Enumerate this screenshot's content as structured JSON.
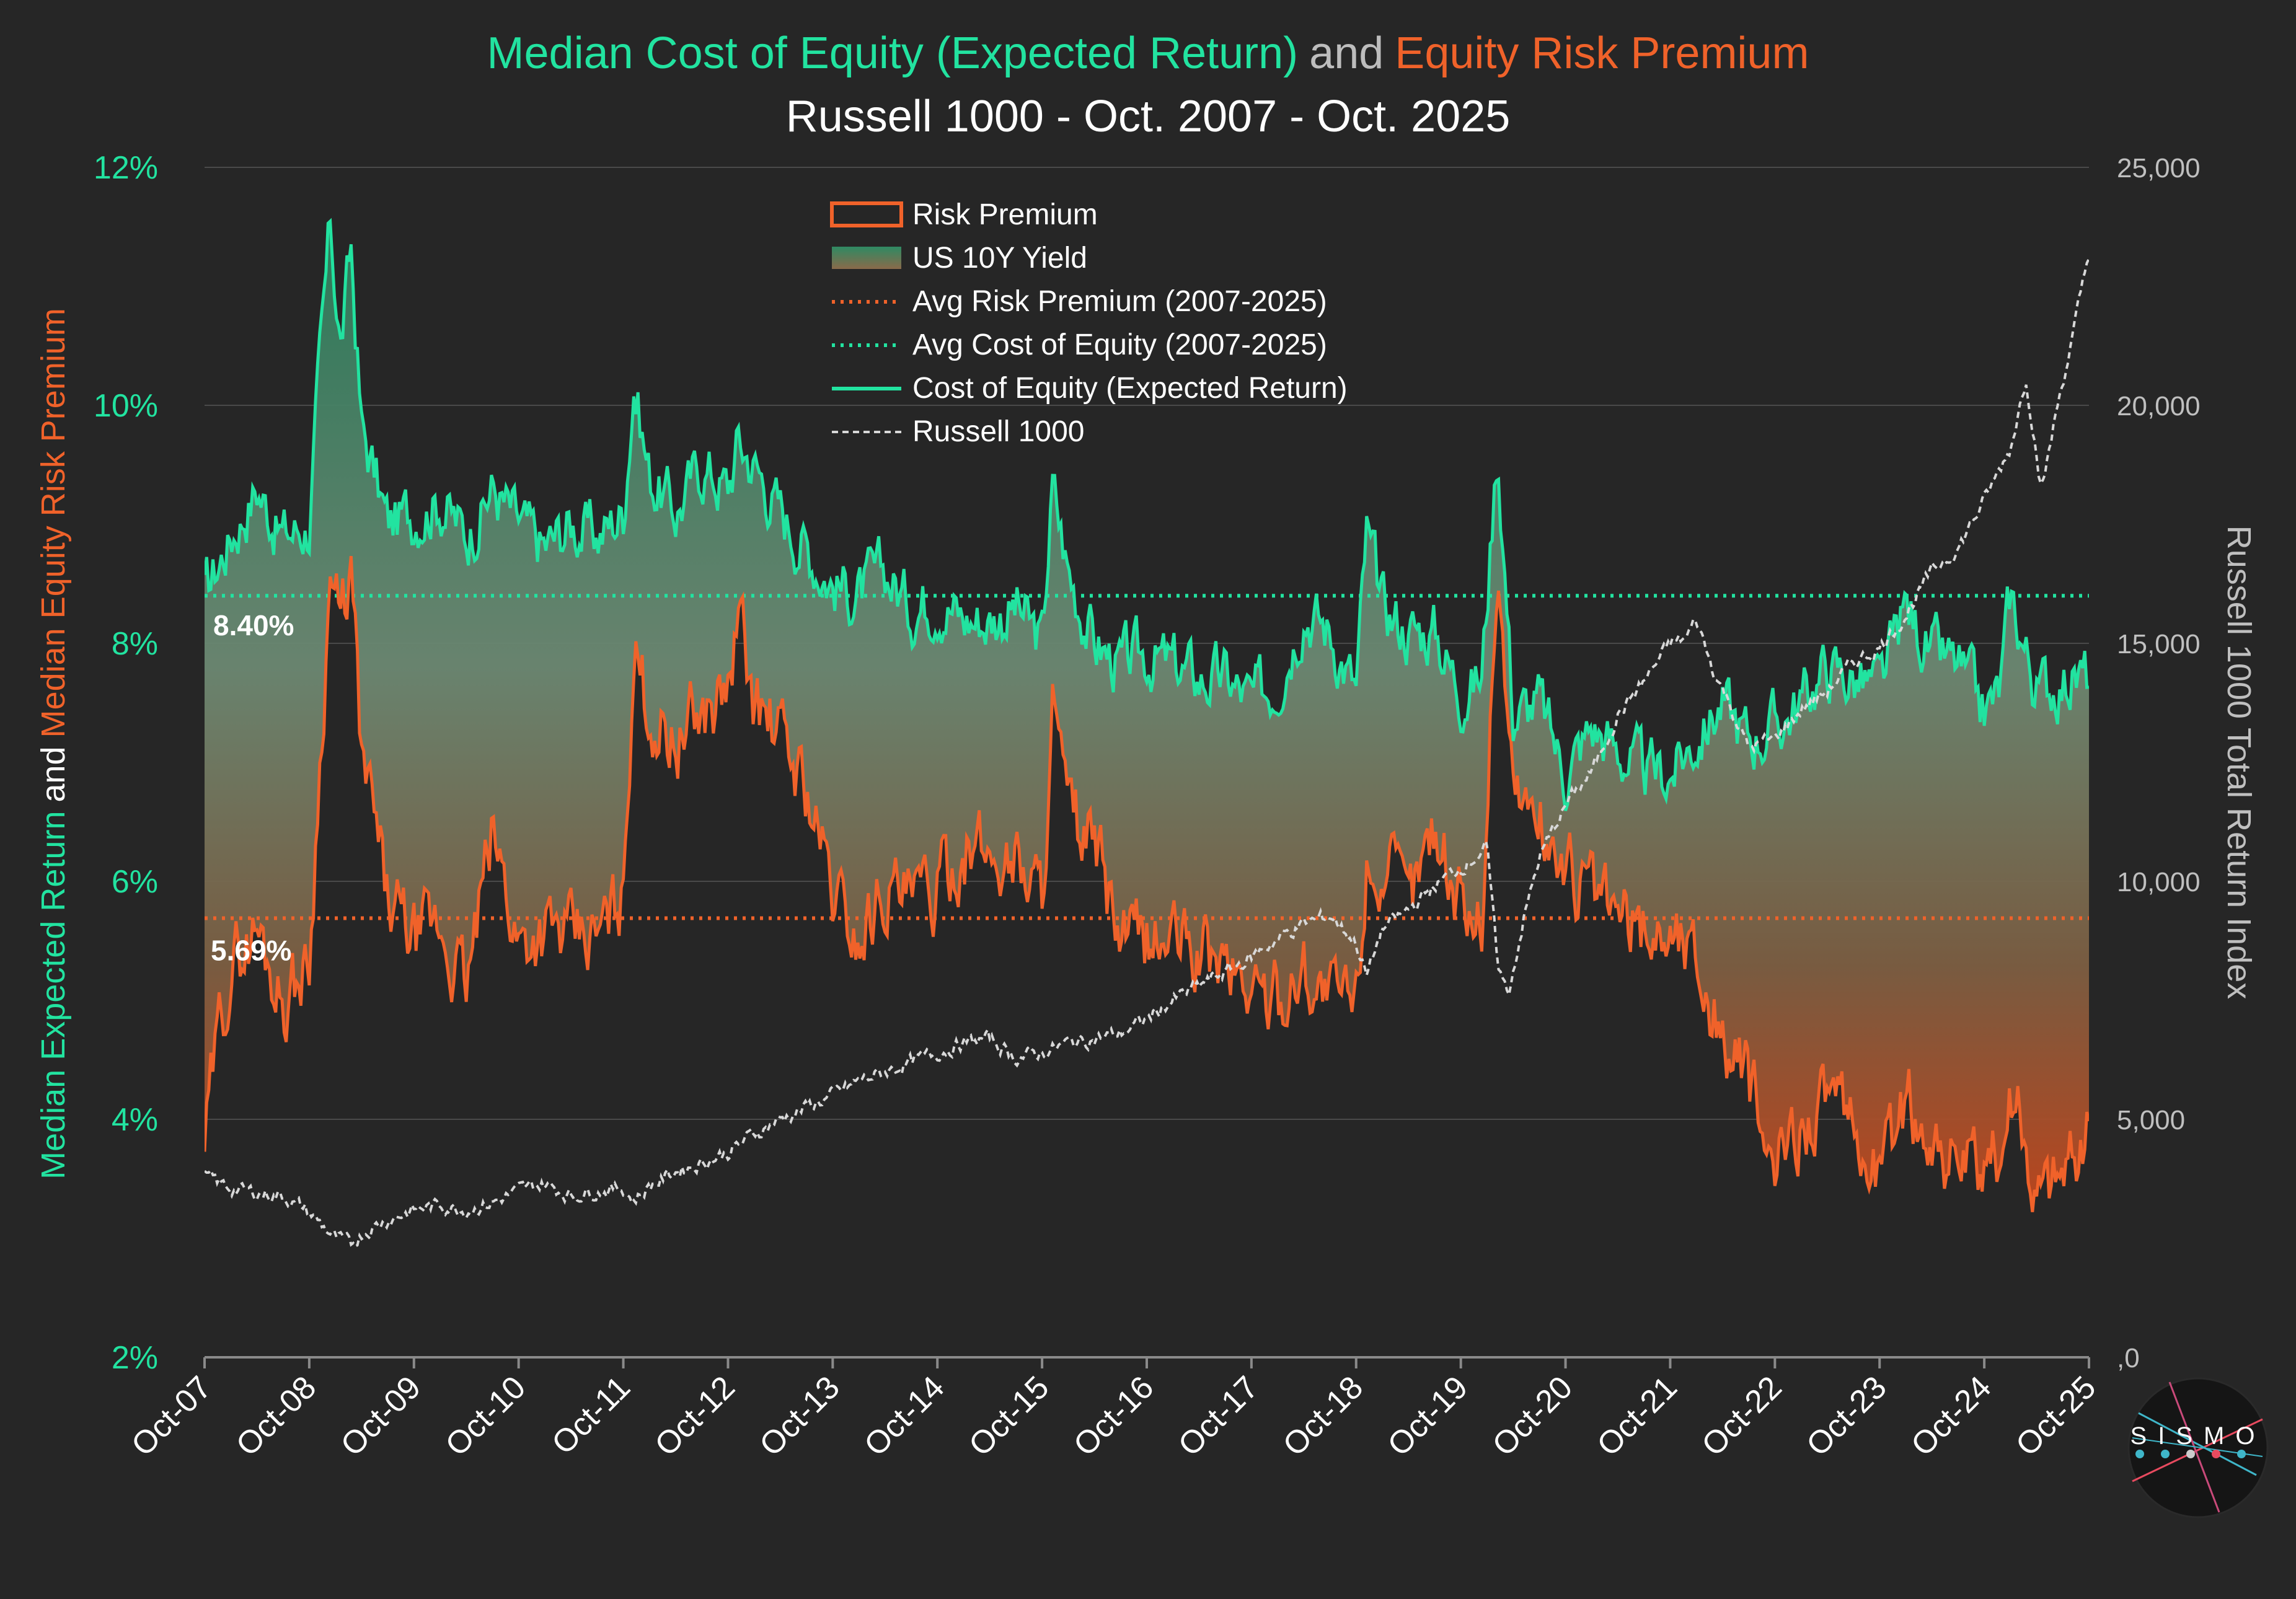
{
  "chart_data": {
    "type": "line",
    "title": {
      "part1": "Median Cost of Equity (Expected Return)",
      "part2": "and",
      "part3": "Equity Risk Premium"
    },
    "subtitle": "Russell 1000 - Oct. 2007 - Oct. 2025",
    "ylabel_left": {
      "part1": "Median Expected Return",
      "part2": "and",
      "part3": "Median Equity Risk Premium"
    },
    "ylabel_right": "Russell 1000 Total Return Index",
    "x_ticks": [
      "Oct-07",
      "Oct-08",
      "Oct-09",
      "Oct-10",
      "Oct-11",
      "Oct-12",
      "Oct-13",
      "Oct-14",
      "Oct-15",
      "Oct-16",
      "Oct-17",
      "Oct-18",
      "Oct-19",
      "Oct-20",
      "Oct-21",
      "Oct-22",
      "Oct-23",
      "Oct-24",
      "Oct-25"
    ],
    "xlim": [
      2007.75,
      2025.75
    ],
    "y_left": {
      "ticks": [
        "2%",
        "4%",
        "6%",
        "8%",
        "10%",
        "12%"
      ],
      "tick_values": [
        2,
        4,
        6,
        8,
        10,
        12
      ],
      "ylim": [
        2,
        12
      ]
    },
    "y_right": {
      "ticks": [
        ",0",
        "5,000",
        "10,000",
        "15,000",
        "20,000",
        "25,000"
      ],
      "tick_values": [
        0,
        5000,
        10000,
        15000,
        20000,
        25000
      ],
      "ylim": [
        0,
        25000
      ]
    },
    "legend": {
      "position": "top-center",
      "items": [
        "Risk Premium",
        "US 10Y Yield",
        "Avg Risk Premium (2007-2025)",
        "Avg Cost of Equity (2007-2025)",
        "Cost of Equity (Expected Return)",
        "Russell 1000"
      ]
    },
    "avg_labels": {
      "cost_of_equity": "8.40%",
      "risk_premium": "5.69%"
    },
    "averages": {
      "cost_of_equity": 8.4,
      "risk_premium": 5.69
    },
    "series": [
      {
        "name": "Cost of Equity (Expected Return)",
        "axis": "left",
        "x": [
          2007.75,
          2008.0,
          2008.25,
          2008.5,
          2008.75,
          2008.85,
          2008.95,
          2009.05,
          2009.15,
          2009.25,
          2009.35,
          2009.5,
          2009.75,
          2010.0,
          2010.25,
          2010.5,
          2010.75,
          2011.0,
          2011.25,
          2011.5,
          2011.75,
          2011.85,
          2012.0,
          2012.25,
          2012.5,
          2012.75,
          2012.85,
          2013.0,
          2013.25,
          2013.5,
          2013.75,
          2014.0,
          2014.25,
          2014.5,
          2014.75,
          2015.0,
          2015.25,
          2015.5,
          2015.75,
          2015.85,
          2016.0,
          2016.25,
          2016.5,
          2016.75,
          2017.0,
          2017.25,
          2017.5,
          2017.75,
          2018.0,
          2018.25,
          2018.5,
          2018.75,
          2018.85,
          2019.0,
          2019.25,
          2019.5,
          2019.75,
          2019.95,
          2020.1,
          2020.25,
          2020.5,
          2020.75,
          2021.0,
          2021.25,
          2021.5,
          2021.75,
          2022.0,
          2022.25,
          2022.5,
          2022.75,
          2023.0,
          2023.25,
          2023.5,
          2023.75,
          2024.0,
          2024.25,
          2024.5,
          2024.75,
          2024.9,
          2025.0,
          2025.25,
          2025.5,
          2025.75
        ],
        "values": [
          8.4,
          8.9,
          9.3,
          8.9,
          9.0,
          10.3,
          11.5,
          10.5,
          11.3,
          9.8,
          9.5,
          9.0,
          9.1,
          9.2,
          8.9,
          9.3,
          9.0,
          8.8,
          9.0,
          8.9,
          9.1,
          10.2,
          9.4,
          9.1,
          9.5,
          9.3,
          9.7,
          9.5,
          9.1,
          8.8,
          8.5,
          8.4,
          8.6,
          8.3,
          8.4,
          8.2,
          8.2,
          8.3,
          8.0,
          9.3,
          8.6,
          8.0,
          7.8,
          7.9,
          7.8,
          7.7,
          7.7,
          7.5,
          7.7,
          8.3,
          8.1,
          7.6,
          8.9,
          8.3,
          8.1,
          8.1,
          7.6,
          7.7,
          9.7,
          7.4,
          7.5,
          6.9,
          7.3,
          7.1,
          6.9,
          6.9,
          7.2,
          7.5,
          7.2,
          7.3,
          7.5,
          7.8,
          7.7,
          7.6,
          8.3,
          7.9,
          7.8,
          7.4,
          7.6,
          8.4,
          7.6,
          7.7,
          7.7
        ]
      },
      {
        "name": "Risk Premium",
        "axis": "left",
        "x": [
          2007.75,
          2007.9,
          2008.0,
          2008.25,
          2008.5,
          2008.75,
          2008.85,
          2008.95,
          2009.05,
          2009.15,
          2009.25,
          2009.35,
          2009.5,
          2009.75,
          2010.0,
          2010.25,
          2010.5,
          2010.75,
          2011.0,
          2011.25,
          2011.5,
          2011.75,
          2011.85,
          2012.0,
          2012.25,
          2012.5,
          2012.75,
          2012.85,
          2013.0,
          2013.25,
          2013.5,
          2013.75,
          2014.0,
          2014.25,
          2014.5,
          2014.75,
          2015.0,
          2015.25,
          2015.5,
          2015.75,
          2015.85,
          2016.0,
          2016.25,
          2016.5,
          2016.75,
          2017.0,
          2017.25,
          2017.5,
          2017.75,
          2018.0,
          2018.25,
          2018.5,
          2018.75,
          2018.85,
          2019.0,
          2019.25,
          2019.5,
          2019.75,
          2019.95,
          2020.1,
          2020.25,
          2020.5,
          2020.75,
          2021.0,
          2021.25,
          2021.5,
          2021.75,
          2022.0,
          2022.25,
          2022.5,
          2022.75,
          2023.0,
          2023.25,
          2023.5,
          2023.75,
          2024.0,
          2024.25,
          2024.5,
          2024.75,
          2024.9,
          2025.0,
          2025.25,
          2025.5,
          2025.75
        ],
        "values": [
          3.8,
          4.8,
          5.3,
          5.6,
          5.0,
          5.3,
          7.0,
          8.6,
          8.1,
          8.6,
          7.0,
          6.6,
          5.8,
          5.5,
          5.6,
          5.1,
          6.4,
          5.5,
          5.6,
          5.5,
          5.5,
          5.9,
          8.0,
          7.4,
          7.2,
          7.4,
          7.6,
          8.2,
          7.5,
          7.2,
          6.8,
          5.9,
          5.5,
          6.0,
          5.8,
          5.9,
          6.3,
          6.2,
          6.2,
          5.9,
          7.5,
          6.5,
          6.3,
          5.5,
          5.5,
          5.5,
          5.4,
          5.3,
          5.1,
          5.0,
          5.3,
          5.0,
          5.0,
          6.2,
          6.1,
          5.8,
          6.5,
          5.8,
          5.7,
          8.7,
          6.8,
          6.5,
          6.1,
          5.9,
          5.7,
          5.6,
          5.6,
          5.4,
          4.7,
          4.3,
          3.5,
          4.0,
          4.2,
          3.8,
          3.6,
          4.1,
          3.9,
          3.6,
          3.5,
          3.7,
          4.3,
          3.4,
          3.6,
          3.9
        ]
      },
      {
        "name": "Russell 1000",
        "axis": "right",
        "x": [
          2007.75,
          2008.0,
          2008.25,
          2008.5,
          2008.75,
          2009.0,
          2009.15,
          2009.25,
          2009.5,
          2009.75,
          2010.0,
          2010.25,
          2010.5,
          2010.75,
          2011.0,
          2011.25,
          2011.5,
          2011.75,
          2011.85,
          2012.0,
          2012.25,
          2012.5,
          2012.75,
          2013.0,
          2013.25,
          2013.5,
          2013.75,
          2014.0,
          2014.25,
          2014.5,
          2014.75,
          2015.0,
          2015.25,
          2015.5,
          2015.75,
          2016.0,
          2016.25,
          2016.5,
          2016.75,
          2017.0,
          2017.25,
          2017.5,
          2017.75,
          2018.0,
          2018.25,
          2018.5,
          2018.75,
          2018.85,
          2019.0,
          2019.25,
          2019.5,
          2019.75,
          2020.0,
          2020.1,
          2020.2,
          2020.35,
          2020.5,
          2020.75,
          2021.0,
          2021.25,
          2021.5,
          2021.75,
          2021.9,
          2022.0,
          2022.15,
          2022.3,
          2022.5,
          2022.75,
          2023.0,
          2023.25,
          2023.5,
          2023.75,
          2024.0,
          2024.25,
          2024.5,
          2024.75,
          2025.0,
          2025.15,
          2025.3,
          2025.45,
          2025.6,
          2025.75
        ],
        "values": [
          3800,
          3550,
          3450,
          3400,
          3050,
          2500,
          2350,
          2600,
          2900,
          3100,
          3200,
          3100,
          3250,
          3500,
          3650,
          3400,
          3500,
          3550,
          3300,
          3600,
          3900,
          4100,
          4300,
          4700,
          5000,
          5250,
          5500,
          5800,
          6000,
          6200,
          6400,
          6600,
          6700,
          6300,
          6400,
          6600,
          6700,
          6800,
          7100,
          7500,
          7800,
          8100,
          8400,
          8800,
          9100,
          9300,
          8700,
          8000,
          9000,
          9400,
          9900,
          10300,
          10700,
          8300,
          7600,
          9200,
          10500,
          11600,
          12300,
          13500,
          14200,
          15000,
          15100,
          15500,
          14500,
          13800,
          12800,
          13000,
          13600,
          14000,
          14600,
          14900,
          15600,
          16500,
          17000,
          18000,
          19100,
          20600,
          18200,
          20000,
          21500,
          23200
        ]
      }
    ]
  },
  "branding": {
    "logo_text": "SISMO"
  }
}
